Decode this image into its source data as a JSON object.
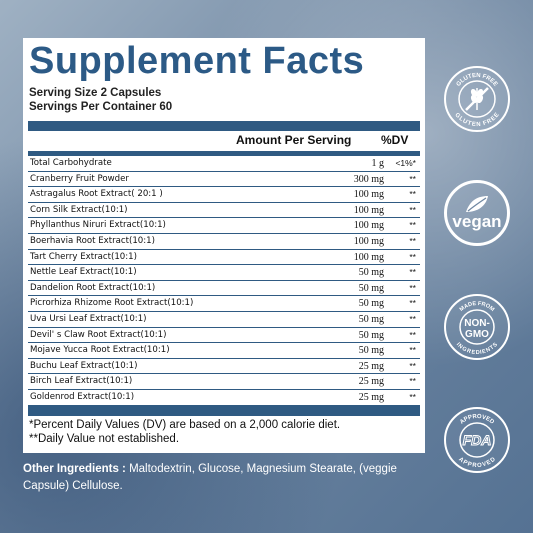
{
  "title": "Supplement Facts",
  "serving_size": "Serving Size 2 Capsules",
  "servings_per_container": "Servings Per Container 60",
  "header": {
    "amount": "Amount Per Serving",
    "dv": "%DV"
  },
  "rows": [
    {
      "name": "Total Carbohydrate",
      "amount": "1 g",
      "dv": "<1%*"
    },
    {
      "name": "Cranberry Fruit Powder",
      "amount": "300 mg",
      "dv": "**"
    },
    {
      "name": "Astragalus Root Extract( 20:1 )",
      "amount": "100 mg",
      "dv": "**"
    },
    {
      "name": "Corn Silk Extract(10:1)",
      "amount": "100 mg",
      "dv": "**"
    },
    {
      "name": "Phyllanthus Niruri Extract(10:1)",
      "amount": "100 mg",
      "dv": "**"
    },
    {
      "name": "Boerhavia Root Extract(10:1)",
      "amount": "100 mg",
      "dv": "**"
    },
    {
      "name": "Tart Cherry Extract(10:1)",
      "amount": "100 mg",
      "dv": "**"
    },
    {
      "name": "Nettle Leaf Extract(10:1)",
      "amount": "50 mg",
      "dv": "**"
    },
    {
      "name": "Dandelion Root Extract(10:1)",
      "amount": "50 mg",
      "dv": "**"
    },
    {
      "name": "Picrorhiza Rhizome Root Extract(10:1)",
      "amount": "50 mg",
      "dv": "**"
    },
    {
      "name": "Uva Ursi Leaf Extract(10:1)",
      "amount": "50 mg",
      "dv": "**"
    },
    {
      "name": "Devil' s Claw Root Extract(10:1)",
      "amount": "50 mg",
      "dv": "**"
    },
    {
      "name": "Mojave Yucca Root Extract(10:1)",
      "amount": "50 mg",
      "dv": "**"
    },
    {
      "name": "Buchu Leaf Extract(10:1)",
      "amount": "25 mg",
      "dv": "**"
    },
    {
      "name": "Birch Leaf Extract(10:1)",
      "amount": "25 mg",
      "dv": "**"
    },
    {
      "name": "Goldenrod Extract(10:1)",
      "amount": "25 mg",
      "dv": "**"
    }
  ],
  "footnote1": "*Percent Daily Values (DV) are based on a 2,000 calorie diet.",
  "footnote2": "**Daily Value not established.",
  "other_label": "Other Ingredients :",
  "other_text": " Maltodextrin, Glucose, Magnesium Stearate, (veggie Capsule) Cellulose.",
  "badges": {
    "gluten_free": {
      "icon": "wheat-icon",
      "top": "GLUTEN FREE",
      "bottom": "GLUTEN FREE"
    },
    "vegan": {
      "icon": "leaf-icon",
      "label": "vegan"
    },
    "non_gmo": {
      "line1": "NON-",
      "line2": "GMO",
      "top": "MADE FROM",
      "bottom": "INGREDIENTS"
    },
    "fda": {
      "label": "FDA",
      "top": "APPROVED",
      "bottom": "APPROVED"
    }
  },
  "colors": {
    "accent": "#2f5a82",
    "title": "#2c5a86"
  }
}
